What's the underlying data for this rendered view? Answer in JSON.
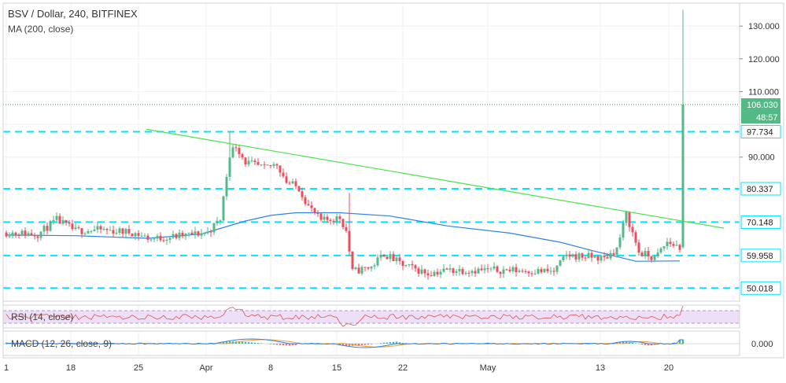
{
  "chart_data": {
    "type": "candlestick",
    "title": "BSV / Dollar, 240, BITFINEX",
    "overlay_label": "MA (200, close)",
    "x_ticks": [
      "1",
      "18",
      "25",
      "Apr",
      "8",
      "15",
      "22",
      "May",
      "13",
      "20"
    ],
    "y_ticks": [
      "130.000",
      "120.000",
      "110.000",
      "90.000"
    ],
    "y_tick_values": [
      130,
      120,
      110,
      90
    ],
    "ylim": [
      46,
      137
    ],
    "horizontal_levels": [
      {
        "label": "97.734",
        "value": 97.734
      },
      {
        "label": "80.337",
        "value": 80.337
      },
      {
        "label": "70.148",
        "value": 70.148
      },
      {
        "label": "59.958",
        "value": 59.958
      },
      {
        "label": "50.018",
        "value": 50.018
      }
    ],
    "last_price": {
      "label": "106.030",
      "value": 106.03,
      "countdown": "48:57"
    },
    "trendline": {
      "start_value": 98.5,
      "end_value": 68.3
    },
    "ma_points": [
      {
        "i": 0,
        "v": 66.2
      },
      {
        "i": 22,
        "v": 66.0
      },
      {
        "i": 45,
        "v": 65.2
      },
      {
        "i": 62,
        "v": 66.5
      },
      {
        "i": 76,
        "v": 70.5
      },
      {
        "i": 84,
        "v": 72.2
      },
      {
        "i": 92,
        "v": 73.0
      },
      {
        "i": 106,
        "v": 73.0
      },
      {
        "i": 122,
        "v": 72.0
      },
      {
        "i": 140,
        "v": 69.0
      },
      {
        "i": 160,
        "v": 66.8
      },
      {
        "i": 176,
        "v": 64.0
      },
      {
        "i": 186,
        "v": 61.5
      },
      {
        "i": 200,
        "v": 58.2
      },
      {
        "i": 214,
        "v": 58.3
      }
    ],
    "candle_anchors": [
      {
        "i": 0,
        "v": 67.0
      },
      {
        "i": 10,
        "v": 66.5
      },
      {
        "i": 16,
        "v": 70.8
      },
      {
        "i": 22,
        "v": 67.5
      },
      {
        "i": 30,
        "v": 67.8
      },
      {
        "i": 40,
        "v": 67.0
      },
      {
        "i": 46,
        "v": 65.0
      },
      {
        "i": 56,
        "v": 66.0
      },
      {
        "i": 64,
        "v": 67.0
      },
      {
        "i": 68,
        "v": 71.0
      },
      {
        "i": 71,
        "v": 91.0
      },
      {
        "i": 73,
        "v": 93.5
      },
      {
        "i": 76,
        "v": 88.5
      },
      {
        "i": 82,
        "v": 86.5
      },
      {
        "i": 86,
        "v": 88.0
      },
      {
        "i": 89,
        "v": 82.5
      },
      {
        "i": 93,
        "v": 80.5
      },
      {
        "i": 96,
        "v": 75.0
      },
      {
        "i": 100,
        "v": 70.5
      },
      {
        "i": 106,
        "v": 71.5
      },
      {
        "i": 108,
        "v": 67.5
      },
      {
        "i": 110,
        "v": 55.0
      },
      {
        "i": 116,
        "v": 56.5
      },
      {
        "i": 120,
        "v": 60.5
      },
      {
        "i": 126,
        "v": 57.0
      },
      {
        "i": 134,
        "v": 54.5
      },
      {
        "i": 140,
        "v": 55.5
      },
      {
        "i": 146,
        "v": 55.5
      },
      {
        "i": 160,
        "v": 55.5
      },
      {
        "i": 174,
        "v": 55.0
      },
      {
        "i": 178,
        "v": 60.0
      },
      {
        "i": 186,
        "v": 59.5
      },
      {
        "i": 190,
        "v": 59.0
      },
      {
        "i": 194,
        "v": 62.0
      },
      {
        "i": 197,
        "v": 72.5
      },
      {
        "i": 201,
        "v": 61.0
      },
      {
        "i": 206,
        "v": 59.0
      },
      {
        "i": 210,
        "v": 64.0
      },
      {
        "i": 214,
        "v": 62.5
      }
    ],
    "spike": {
      "i": 215,
      "open": 62.5,
      "close": 106.03,
      "high": 135.0,
      "low": 62.0
    },
    "indicators": [
      {
        "label": "RSI (14, close)",
        "band_upper": 70,
        "band_lower": 30
      },
      {
        "label": "MACD (12, 26, close, 9)",
        "tick": "0.000"
      }
    ]
  },
  "colors": {
    "up": "#53b987",
    "down": "#eb4d5c",
    "level_line": "#00e5ff",
    "trendline": "#4be34b",
    "ma": "#2d84e8",
    "rsi_line": "#e0554f",
    "rsi_band": "#e8d7f2",
    "macd_line": "#2d84e8",
    "signal_line": "#f0a035",
    "last_price_badge": "#53b987",
    "level_badge_border": "#00e5ff"
  }
}
